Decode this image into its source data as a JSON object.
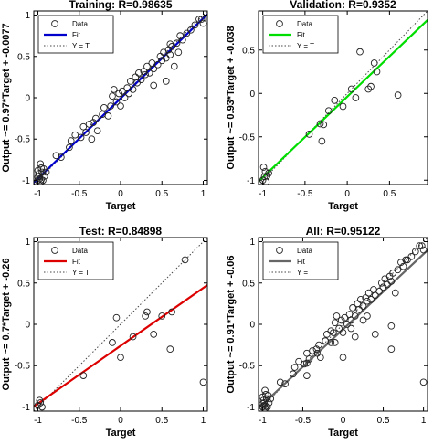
{
  "chart_data": [
    {
      "type": "scatter",
      "title": "Training: R=0.98635",
      "xlabel": "Target",
      "ylabel": "Output ~= 0.97*Target + -0.0077",
      "xlim": [
        -1.05,
        1.05
      ],
      "ylim": [
        -1.05,
        1.05
      ],
      "xticks": [
        -1,
        -0.5,
        0,
        0.5,
        1
      ],
      "yticks": [
        -1,
        -0.5,
        0,
        0.5,
        1
      ],
      "xtick_labels": [
        "-1",
        "-0.5",
        "0",
        "0.5",
        "1"
      ],
      "ytick_labels": [
        "-1",
        "-0.5",
        "0",
        "0.5",
        "1"
      ],
      "fit": {
        "slope": 0.97,
        "intercept": -0.0077,
        "color": "#0000cc"
      },
      "legend": {
        "position": "top-left",
        "entries": [
          "Data",
          "Fit",
          "Y = T"
        ]
      },
      "points": [
        [
          -1.0,
          -1.0
        ],
        [
          -0.98,
          -0.95
        ],
        [
          -0.97,
          -1.02
        ],
        [
          -0.95,
          -0.9
        ],
        [
          -0.96,
          -0.85
        ],
        [
          -0.99,
          -0.92
        ],
        [
          -1.0,
          -0.88
        ],
        [
          -0.94,
          -1.0
        ],
        [
          -0.98,
          -0.98
        ],
        [
          -0.92,
          -0.95
        ],
        [
          -0.97,
          -0.8
        ],
        [
          -0.93,
          -0.86
        ],
        [
          -1.0,
          -0.96
        ],
        [
          -0.96,
          -0.99
        ],
        [
          -0.9,
          -0.9
        ],
        [
          -0.78,
          -0.7
        ],
        [
          -0.72,
          -0.72
        ],
        [
          -0.62,
          -0.6
        ],
        [
          -0.6,
          -0.52
        ],
        [
          -0.55,
          -0.45
        ],
        [
          -0.48,
          -0.48
        ],
        [
          -0.45,
          -0.35
        ],
        [
          -0.42,
          -0.42
        ],
        [
          -0.38,
          -0.32
        ],
        [
          -0.33,
          -0.3
        ],
        [
          -0.3,
          -0.25
        ],
        [
          -0.28,
          -0.4
        ],
        [
          -0.22,
          -0.2
        ],
        [
          -0.2,
          -0.12
        ],
        [
          -0.15,
          -0.22
        ],
        [
          -0.12,
          -0.1
        ],
        [
          -0.1,
          0.02
        ],
        [
          -0.08,
          0.1
        ],
        [
          -0.05,
          -0.05
        ],
        [
          -0.02,
          0.05
        ],
        [
          0.0,
          -0.1
        ],
        [
          0.02,
          0.08
        ],
        [
          0.05,
          0.0
        ],
        [
          0.08,
          0.12
        ],
        [
          0.1,
          0.05
        ],
        [
          0.12,
          0.2
        ],
        [
          0.15,
          0.1
        ],
        [
          0.18,
          0.25
        ],
        [
          0.2,
          0.18
        ],
        [
          0.22,
          0.3
        ],
        [
          0.25,
          0.22
        ],
        [
          0.28,
          0.32
        ],
        [
          0.3,
          0.28
        ],
        [
          0.32,
          0.38
        ],
        [
          0.35,
          0.3
        ],
        [
          0.38,
          0.42
        ],
        [
          0.4,
          0.35
        ],
        [
          0.45,
          0.4
        ],
        [
          0.48,
          0.5
        ],
        [
          0.5,
          0.45
        ],
        [
          0.52,
          0.55
        ],
        [
          0.55,
          0.48
        ],
        [
          0.58,
          0.58
        ],
        [
          0.6,
          0.52
        ],
        [
          0.62,
          0.62
        ],
        [
          0.65,
          0.38
        ],
        [
          0.68,
          0.66
        ],
        [
          0.72,
          0.75
        ],
        [
          0.75,
          0.7
        ],
        [
          0.8,
          0.78
        ],
        [
          0.85,
          0.82
        ],
        [
          0.9,
          0.88
        ],
        [
          0.95,
          0.95
        ],
        [
          1.0,
          0.9
        ],
        [
          0.98,
          0.95
        ],
        [
          0.4,
          0.15
        ],
        [
          0.55,
          0.2
        ],
        [
          0.6,
          0.65
        ],
        [
          -0.35,
          -0.5
        ],
        [
          0.7,
          0.55
        ]
      ]
    },
    {
      "type": "scatter",
      "title": "Validation: R=0.9352",
      "xlabel": "Target",
      "ylabel": "Output ~= 0.93*Target + -0.038",
      "xlim": [
        -1.05,
        0.95
      ],
      "ylim": [
        -1.05,
        0.95
      ],
      "xticks": [
        -1,
        -0.5,
        0,
        0.5
      ],
      "yticks": [
        -1,
        -0.5,
        0,
        0.5
      ],
      "xtick_labels": [
        "-1",
        "-0.5",
        "0",
        "0.5"
      ],
      "ytick_labels": [
        "-1",
        "-0.5",
        "0",
        "0.5"
      ],
      "fit": {
        "slope": 0.93,
        "intercept": -0.038,
        "color": "#00dd00"
      },
      "legend": {
        "position": "top-left",
        "entries": [
          "Data",
          "Fit",
          "Y = T"
        ]
      },
      "points": [
        [
          -1.0,
          -1.0
        ],
        [
          -0.98,
          -0.96
        ],
        [
          -0.96,
          -1.02
        ],
        [
          -0.97,
          -0.9
        ],
        [
          -0.95,
          -0.95
        ],
        [
          -0.99,
          -0.85
        ],
        [
          -0.93,
          -0.92
        ],
        [
          -0.45,
          -0.47
        ],
        [
          -0.32,
          -0.35
        ],
        [
          -0.28,
          -0.36
        ],
        [
          -0.22,
          -0.2
        ],
        [
          -0.15,
          -0.08
        ],
        [
          -0.05,
          -0.15
        ],
        [
          0.05,
          0.05
        ],
        [
          0.1,
          -0.05
        ],
        [
          0.25,
          0.05
        ],
        [
          0.28,
          0.08
        ],
        [
          0.32,
          0.35
        ],
        [
          0.35,
          0.25
        ],
        [
          0.15,
          0.48
        ],
        [
          0.6,
          -0.02
        ],
        [
          -0.3,
          -0.55
        ]
      ]
    },
    {
      "type": "scatter",
      "title": "Test: R=0.84898",
      "xlabel": "Target",
      "ylabel": "Output ~= 0.7*Target + -0.26",
      "xlim": [
        -1.05,
        1.05
      ],
      "ylim": [
        -1.05,
        1.05
      ],
      "xticks": [
        -1,
        -0.5,
        0,
        0.5,
        1
      ],
      "yticks": [
        -1,
        -0.5,
        0,
        0.5,
        1
      ],
      "xtick_labels": [
        "-1",
        "-0.5",
        "0",
        "0.5",
        "1"
      ],
      "ytick_labels": [
        "-1",
        "-0.5",
        "0",
        "0.5",
        "1"
      ],
      "fit": {
        "slope": 0.7,
        "intercept": -0.26,
        "color": "#dd0000"
      },
      "legend": {
        "position": "top-left",
        "entries": [
          "Data",
          "Fit",
          "Y = T"
        ]
      },
      "points": [
        [
          -1.0,
          -0.98
        ],
        [
          -0.97,
          -0.95
        ],
        [
          -0.95,
          -1.0
        ],
        [
          -0.98,
          -0.92
        ],
        [
          -0.45,
          -0.62
        ],
        [
          -0.1,
          -0.22
        ],
        [
          -0.05,
          0.08
        ],
        [
          0.0,
          -0.4
        ],
        [
          0.15,
          -0.15
        ],
        [
          0.3,
          0.1
        ],
        [
          0.32,
          0.15
        ],
        [
          0.4,
          -0.12
        ],
        [
          0.5,
          0.1
        ],
        [
          0.62,
          0.15
        ],
        [
          0.6,
          -0.3
        ],
        [
          0.78,
          0.78
        ],
        [
          1.0,
          -0.7
        ]
      ]
    },
    {
      "type": "scatter",
      "title": "All: R=0.95122",
      "xlabel": "Target",
      "ylabel": "Output ~= 0.91*Target + -0.06",
      "xlim": [
        -1.05,
        1.05
      ],
      "ylim": [
        -1.05,
        1.05
      ],
      "xticks": [
        -1,
        -0.5,
        0,
        0.5,
        1
      ],
      "yticks": [
        -1,
        -0.5,
        0,
        0.5,
        1
      ],
      "xtick_labels": [
        "-1",
        "-0.5",
        "0",
        "0.5",
        "1"
      ],
      "ytick_labels": [
        "-1",
        "-0.5",
        "0",
        "0.5",
        "1"
      ],
      "fit": {
        "slope": 0.91,
        "intercept": -0.06,
        "color": "#666666"
      },
      "legend": {
        "position": "top-left",
        "entries": [
          "Data",
          "Fit",
          "Y = T"
        ]
      },
      "points": [
        [
          -1.0,
          -1.0
        ],
        [
          -0.98,
          -0.95
        ],
        [
          -0.97,
          -1.02
        ],
        [
          -0.95,
          -0.9
        ],
        [
          -0.96,
          -0.85
        ],
        [
          -0.99,
          -0.92
        ],
        [
          -1.0,
          -0.88
        ],
        [
          -0.94,
          -1.0
        ],
        [
          -0.98,
          -0.98
        ],
        [
          -0.92,
          -0.95
        ],
        [
          -0.97,
          -0.8
        ],
        [
          -0.93,
          -0.86
        ],
        [
          -1.0,
          -0.96
        ],
        [
          -0.96,
          -0.99
        ],
        [
          -0.9,
          -0.9
        ],
        [
          -0.78,
          -0.7
        ],
        [
          -0.72,
          -0.72
        ],
        [
          -0.62,
          -0.6
        ],
        [
          -0.6,
          -0.52
        ],
        [
          -0.55,
          -0.45
        ],
        [
          -0.48,
          -0.48
        ],
        [
          -0.45,
          -0.35
        ],
        [
          -0.42,
          -0.42
        ],
        [
          -0.38,
          -0.32
        ],
        [
          -0.33,
          -0.3
        ],
        [
          -0.3,
          -0.25
        ],
        [
          -0.28,
          -0.4
        ],
        [
          -0.22,
          -0.2
        ],
        [
          -0.2,
          -0.12
        ],
        [
          -0.15,
          -0.22
        ],
        [
          -0.12,
          -0.1
        ],
        [
          -0.1,
          0.02
        ],
        [
          -0.08,
          0.1
        ],
        [
          -0.05,
          -0.05
        ],
        [
          -0.02,
          0.05
        ],
        [
          0.0,
          -0.1
        ],
        [
          0.02,
          0.08
        ],
        [
          0.05,
          0.0
        ],
        [
          0.08,
          0.12
        ],
        [
          0.1,
          0.05
        ],
        [
          0.12,
          0.2
        ],
        [
          0.15,
          0.1
        ],
        [
          0.18,
          0.25
        ],
        [
          0.2,
          0.18
        ],
        [
          0.22,
          0.3
        ],
        [
          0.25,
          0.22
        ],
        [
          0.28,
          0.32
        ],
        [
          0.3,
          0.28
        ],
        [
          0.32,
          0.38
        ],
        [
          0.35,
          0.3
        ],
        [
          0.38,
          0.42
        ],
        [
          0.4,
          0.35
        ],
        [
          0.45,
          0.4
        ],
        [
          0.48,
          0.5
        ],
        [
          0.5,
          0.45
        ],
        [
          0.52,
          0.55
        ],
        [
          0.55,
          0.48
        ],
        [
          0.58,
          0.58
        ],
        [
          0.6,
          0.52
        ],
        [
          0.62,
          0.62
        ],
        [
          0.65,
          0.38
        ],
        [
          0.68,
          0.66
        ],
        [
          0.72,
          0.75
        ],
        [
          0.75,
          0.7
        ],
        [
          0.8,
          0.78
        ],
        [
          0.85,
          0.82
        ],
        [
          0.9,
          0.88
        ],
        [
          0.95,
          0.95
        ],
        [
          1.0,
          0.9
        ],
        [
          0.98,
          0.95
        ],
        [
          -0.45,
          -0.47
        ],
        [
          -0.32,
          -0.35
        ],
        [
          -0.22,
          -0.2
        ],
        [
          -0.15,
          -0.08
        ],
        [
          0.1,
          -0.05
        ],
        [
          0.25,
          0.05
        ],
        [
          0.6,
          -0.02
        ],
        [
          -0.1,
          -0.22
        ],
        [
          0.0,
          -0.4
        ],
        [
          0.15,
          -0.15
        ],
        [
          0.4,
          -0.12
        ],
        [
          0.6,
          -0.3
        ],
        [
          0.78,
          0.78
        ],
        [
          1.0,
          -0.7
        ],
        [
          -0.45,
          -0.62
        ],
        [
          0.3,
          0.1
        ]
      ]
    }
  ]
}
